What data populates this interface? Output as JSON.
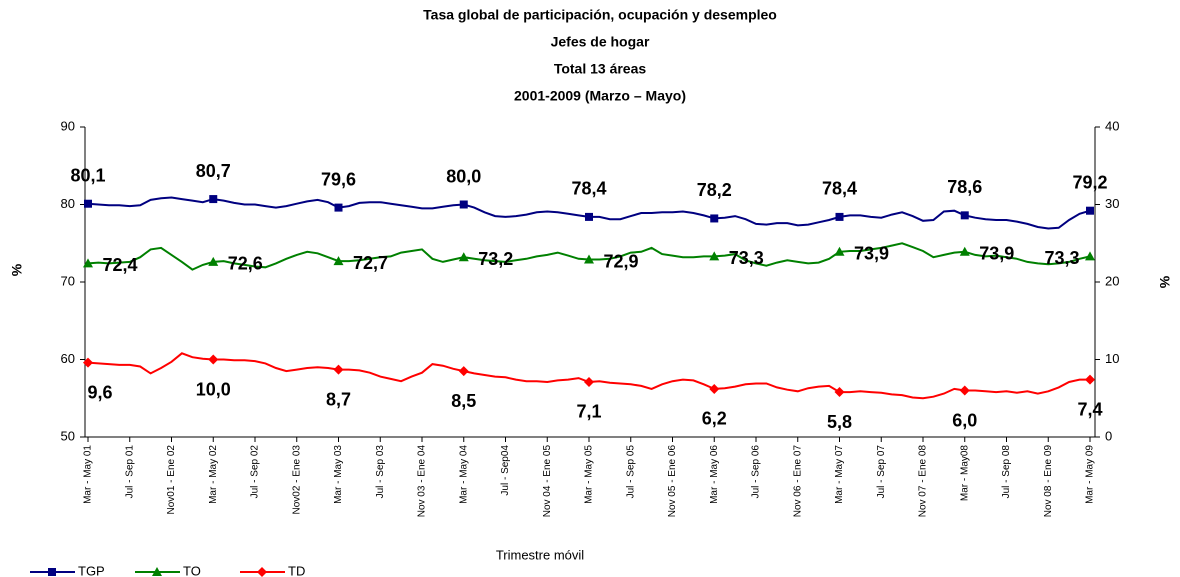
{
  "chart_data": {
    "type": "line",
    "title": "Tasa   global de participación, ocupación y desempleo",
    "subtitle": [
      "Jefes de hogar",
      "Total 13 áreas",
      "2001-2009 (Marzo – Mayo)"
    ],
    "x_label": "Trimestre móvil",
    "y_label": "%",
    "y2_label": "%",
    "categories": [
      "Mar - May 01",
      null,
      null,
      null,
      "Jul - Sep 01",
      null,
      null,
      null,
      "Nov01 - Ene 02",
      null,
      null,
      null,
      "Mar - May 02",
      null,
      null,
      null,
      "Jul - Sep 02",
      null,
      null,
      null,
      "Nov02 - Ene 03",
      null,
      null,
      null,
      "Mar - May 03",
      null,
      null,
      null,
      "Jul - Sep 03",
      null,
      null,
      null,
      "Nov 03 - Ene 04",
      null,
      null,
      null,
      "Mar - May 04",
      null,
      null,
      null,
      "Jul - Sep04",
      null,
      null,
      null,
      "Nov 04 - Ene 05",
      null,
      null,
      null,
      "Mar - May 05",
      null,
      null,
      null,
      "Jul - Sep 05",
      null,
      null,
      null,
      "Nov 05 - Ene 06",
      null,
      null,
      null,
      "Mar - May 06",
      null,
      null,
      null,
      "Jul - Sep 06",
      null,
      null,
      null,
      "Nov 06 - Ene 07",
      null,
      null,
      null,
      "Mar - May 07",
      null,
      null,
      null,
      "Jul - Sep 07",
      null,
      null,
      null,
      "Nov 07 - Ene 08",
      null,
      null,
      null,
      "Mar - May08",
      null,
      null,
      null,
      "Jul - Sep 08",
      null,
      null,
      null,
      "Nov 08 - Ene 09",
      null,
      null,
      null,
      "Mar - May 09"
    ],
    "ylim": [
      50,
      90
    ],
    "yticks": [
      50,
      60,
      70,
      80,
      90
    ],
    "y2lim": [
      0,
      40
    ],
    "y2ticks": [
      0,
      10,
      20,
      30,
      40
    ],
    "grid": false,
    "legend": "bottom-left",
    "series": [
      {
        "name": "TGP",
        "color": "#000080",
        "marker": "square",
        "values": [
          80.1,
          80.0,
          79.9,
          79.9,
          79.8,
          79.9,
          80.6,
          80.8,
          80.9,
          80.7,
          80.5,
          80.3,
          80.7,
          80.5,
          80.2,
          80.0,
          80.0,
          79.8,
          79.6,
          79.8,
          80.1,
          80.4,
          80.6,
          80.3,
          79.6,
          79.8,
          80.2,
          80.3,
          80.3,
          80.1,
          79.9,
          79.7,
          79.5,
          79.5,
          79.7,
          79.9,
          80.0,
          79.6,
          79.0,
          78.5,
          78.4,
          78.5,
          78.7,
          79.0,
          79.1,
          79.0,
          78.8,
          78.6,
          78.4,
          78.4,
          78.1,
          78.1,
          78.5,
          78.9,
          78.9,
          79.0,
          79.0,
          79.1,
          78.9,
          78.6,
          78.2,
          78.3,
          78.5,
          78.1,
          77.5,
          77.4,
          77.6,
          77.6,
          77.3,
          77.4,
          77.7,
          78.0,
          78.4,
          78.6,
          78.6,
          78.4,
          78.3,
          78.7,
          79.0,
          78.5,
          77.9,
          78.0,
          79.1,
          79.2,
          78.6,
          78.3,
          78.1,
          78.0,
          78.0,
          77.8,
          77.5,
          77.1,
          76.9,
          77.0,
          78.0,
          78.8,
          79.2
        ],
        "value_labels": [
          "80,1",
          null,
          null,
          null,
          null,
          null,
          null,
          null,
          null,
          null,
          null,
          null,
          "80,7",
          null,
          null,
          null,
          null,
          null,
          null,
          null,
          null,
          null,
          null,
          null,
          "79,6",
          null,
          null,
          null,
          null,
          null,
          null,
          null,
          null,
          null,
          null,
          null,
          "80,0",
          null,
          null,
          null,
          null,
          null,
          null,
          null,
          null,
          null,
          null,
          null,
          "78,4",
          null,
          null,
          null,
          null,
          null,
          null,
          null,
          null,
          null,
          null,
          null,
          "78,2",
          null,
          null,
          null,
          null,
          null,
          null,
          null,
          null,
          null,
          null,
          null,
          "78,4",
          null,
          null,
          null,
          null,
          null,
          null,
          null,
          null,
          null,
          null,
          null,
          "78,6",
          null,
          null,
          null,
          null,
          null,
          null,
          null,
          null,
          null,
          null,
          null,
          "79,2"
        ]
      },
      {
        "name": "TO",
        "color": "#008000",
        "marker": "triangle",
        "values": [
          72.4,
          72.5,
          72.4,
          72.5,
          72.6,
          73.2,
          74.2,
          74.4,
          73.5,
          72.6,
          71.6,
          72.2,
          72.6,
          72.7,
          72.4,
          72.2,
          72.0,
          71.9,
          72.4,
          73.0,
          73.5,
          73.9,
          73.7,
          73.2,
          72.7,
          72.7,
          72.8,
          73.0,
          73.2,
          73.3,
          73.8,
          74.0,
          74.2,
          73.0,
          72.6,
          72.9,
          73.2,
          73.0,
          72.8,
          72.7,
          72.6,
          72.8,
          73.0,
          73.3,
          73.5,
          73.8,
          73.4,
          73.0,
          72.9,
          72.9,
          73.0,
          73.3,
          73.8,
          73.9,
          74.4,
          73.6,
          73.4,
          73.2,
          73.2,
          73.3,
          73.3,
          73.4,
          73.6,
          72.8,
          72.4,
          72.1,
          72.5,
          72.8,
          72.6,
          72.4,
          72.5,
          73.0,
          73.9,
          74.0,
          74.0,
          74.2,
          74.4,
          74.7,
          75.0,
          74.5,
          74.0,
          73.2,
          73.5,
          73.8,
          73.9,
          73.5,
          73.3,
          73.4,
          73.2,
          73.0,
          72.6,
          72.4,
          72.3,
          72.4,
          72.6,
          73.0,
          73.3
        ],
        "value_labels": [
          "72,4",
          null,
          null,
          null,
          null,
          null,
          null,
          null,
          null,
          null,
          null,
          null,
          "72,6",
          null,
          null,
          null,
          null,
          null,
          null,
          null,
          null,
          null,
          null,
          null,
          "72,7",
          null,
          null,
          null,
          null,
          null,
          null,
          null,
          null,
          null,
          null,
          null,
          "73,2",
          null,
          null,
          null,
          null,
          null,
          null,
          null,
          null,
          null,
          null,
          null,
          "72,9",
          null,
          null,
          null,
          null,
          null,
          null,
          null,
          null,
          null,
          null,
          null,
          "73,3",
          null,
          null,
          null,
          null,
          null,
          null,
          null,
          null,
          null,
          null,
          null,
          "73,9",
          null,
          null,
          null,
          null,
          null,
          null,
          null,
          null,
          null,
          null,
          null,
          "73,9",
          null,
          null,
          null,
          null,
          null,
          null,
          null,
          null,
          null,
          null,
          null,
          "73,3"
        ]
      },
      {
        "name": "TD",
        "color": "#ff0000",
        "marker": "diamond",
        "axis": "y2",
        "values": [
          9.6,
          9.5,
          9.4,
          9.3,
          9.3,
          9.1,
          8.2,
          8.9,
          9.7,
          10.8,
          10.3,
          10.1,
          10.0,
          10.0,
          9.9,
          9.9,
          9.8,
          9.5,
          8.9,
          8.5,
          8.7,
          8.9,
          9.0,
          8.9,
          8.7,
          8.7,
          8.6,
          8.3,
          7.8,
          7.5,
          7.2,
          7.8,
          8.3,
          9.4,
          9.2,
          8.8,
          8.5,
          8.2,
          8.0,
          7.8,
          7.7,
          7.4,
          7.2,
          7.2,
          7.1,
          7.3,
          7.4,
          7.6,
          7.1,
          7.2,
          7.0,
          6.9,
          6.8,
          6.6,
          6.2,
          6.8,
          7.2,
          7.4,
          7.3,
          6.8,
          6.2,
          6.3,
          6.5,
          6.8,
          6.9,
          6.9,
          6.4,
          6.1,
          5.9,
          6.3,
          6.5,
          6.6,
          5.8,
          5.8,
          5.9,
          5.8,
          5.7,
          5.5,
          5.4,
          5.1,
          5.0,
          5.2,
          5.6,
          6.2,
          6.0,
          6.0,
          5.9,
          5.8,
          5.9,
          5.7,
          5.9,
          5.6,
          5.9,
          6.4,
          7.1,
          7.4,
          7.4
        ],
        "value_labels": [
          "9,6",
          null,
          null,
          null,
          null,
          null,
          null,
          null,
          null,
          null,
          null,
          null,
          "10,0",
          null,
          null,
          null,
          null,
          null,
          null,
          null,
          null,
          null,
          null,
          null,
          "8,7",
          null,
          null,
          null,
          null,
          null,
          null,
          null,
          null,
          null,
          null,
          null,
          "8,5",
          null,
          null,
          null,
          null,
          null,
          null,
          null,
          null,
          null,
          null,
          null,
          "7,1",
          null,
          null,
          null,
          null,
          null,
          null,
          null,
          null,
          null,
          null,
          null,
          "6,2",
          null,
          null,
          null,
          null,
          null,
          null,
          null,
          null,
          null,
          null,
          null,
          "5,8",
          null,
          null,
          null,
          null,
          null,
          null,
          null,
          null,
          null,
          null,
          null,
          "6,0",
          null,
          null,
          null,
          null,
          null,
          null,
          null,
          null,
          null,
          null,
          null,
          "7,4"
        ]
      }
    ]
  }
}
